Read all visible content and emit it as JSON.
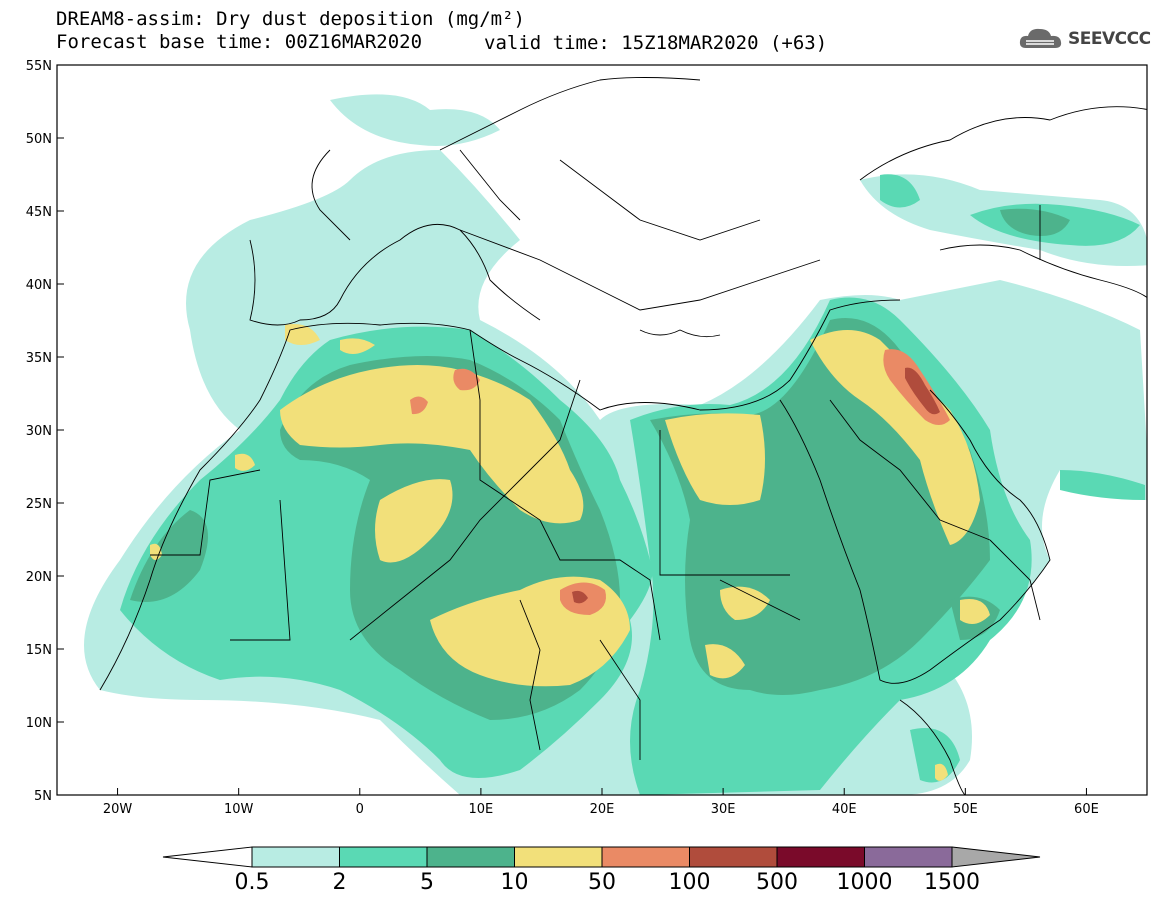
{
  "header": {
    "title_line1": "DREAM8-assim: Dry dust deposition (mg/m²)",
    "title_line2_left": "Forecast base time: 00Z16MAR2020",
    "title_line2_right": "valid time: 15Z18MAR2020 (+63)"
  },
  "logo": {
    "text": "SEEVCCC",
    "icon": "cloud-icon"
  },
  "map": {
    "lat_range": [
      5,
      55
    ],
    "lon_range": [
      -25,
      65
    ],
    "lat_ticks": [
      "5N",
      "10N",
      "15N",
      "20N",
      "25N",
      "30N",
      "35N",
      "40N",
      "45N",
      "50N",
      "55N"
    ],
    "lon_ticks": [
      "20W",
      "10W",
      "0",
      "10E",
      "20E",
      "30E",
      "40E",
      "50E",
      "60E"
    ]
  },
  "colorbar": {
    "labels": [
      "0.5",
      "2",
      "5",
      "10",
      "50",
      "100",
      "500",
      "1000",
      "1500"
    ],
    "colors": {
      "c0_5": "#b8ece3",
      "c2": "#5ad9b4",
      "c5": "#4db38c",
      "c10": "#f2e07a",
      "c50": "#ea8a65",
      "c100": "#b04c3c",
      "c500": "#7a0a2a",
      "c1000": "#8a6a9a",
      "c1500": "#a8a8a8"
    }
  }
}
